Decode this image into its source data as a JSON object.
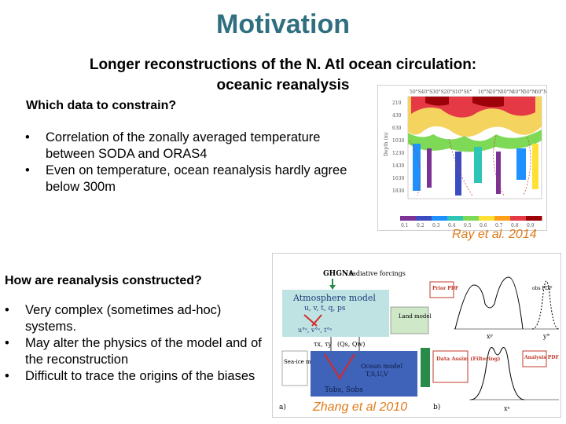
{
  "title": "Motivation",
  "subtitle_line1": "Longer reconstructions of the N. Atl ocean circulation:",
  "subtitle_line2": "oceanic reanalysis",
  "section1": {
    "heading": "Which data to constrain?",
    "bullets": [
      "Correlation of the zonally averaged temperature between  SODA and ORAS4",
      "Even on temperature, ocean reanalysis hardly agree below 300m"
    ]
  },
  "section2": {
    "heading": "How are reanalysis constructed?",
    "bullets": [
      "Very complex (sometimes ad-hoc) systems.",
      "May alter the physics of the model and of the reconstruction",
      "Difficult to trace the origins of the biases"
    ]
  },
  "credits": {
    "ray": "Ray et al. 2014",
    "zhang": "Zhang et al 2010"
  },
  "figure_ray": {
    "top_axis_labels": [
      "50°S",
      "40°S",
      "30°S",
      "20°S",
      "10°S",
      "0°",
      "10°N",
      "20°N",
      "30°N",
      "40°N",
      "50°N",
      "60°N"
    ],
    "depth_ticks": [
      "210",
      "430",
      "630",
      "1030",
      "1230",
      "1430",
      "1630",
      "1830"
    ],
    "ylabel": "Depth (m)",
    "colorbar_ticks": [
      "0.1",
      "0.2",
      "0.3",
      "0.4",
      "0.5",
      "0.6",
      "0.7",
      "0.8",
      "0.9"
    ],
    "colors": [
      "#7b3294",
      "#3b4cc0",
      "#1e90ff",
      "#2ec4b6",
      "#7ed957",
      "#ffe135",
      "#ff9f1c",
      "#e63946",
      "#9d0208"
    ]
  },
  "figure_zhang": {
    "ghgna": "GHGNA",
    "radiative": ": radiative forcings",
    "atmosphere_model": "Atmosphere model",
    "atmosphere_vars": "u, v, t, q, ps",
    "obs_atm": "u°ˢ, v°ˢ, t°ˢ",
    "land_model": "Land model",
    "fluxes_left": "τx, τy",
    "fluxes_right": "(Qs, Qw)",
    "seaice_model": "Sea-ice model",
    "ocean_model": "Ocean model",
    "ocean_vars": "T,S,U,V",
    "obs_ocean": "Tobs, Sobs",
    "panel_a": "a)",
    "panel_b": "b)",
    "prior_pdf": "Prior PDF",
    "obs_pdf": "obs PDF",
    "analysis_pdf": "Analysis PDF",
    "data_assim": "Data Assim (Filtering)",
    "x_prior": "xᵖ",
    "y_obs": "y°",
    "x_analysis": "xᵃ"
  }
}
